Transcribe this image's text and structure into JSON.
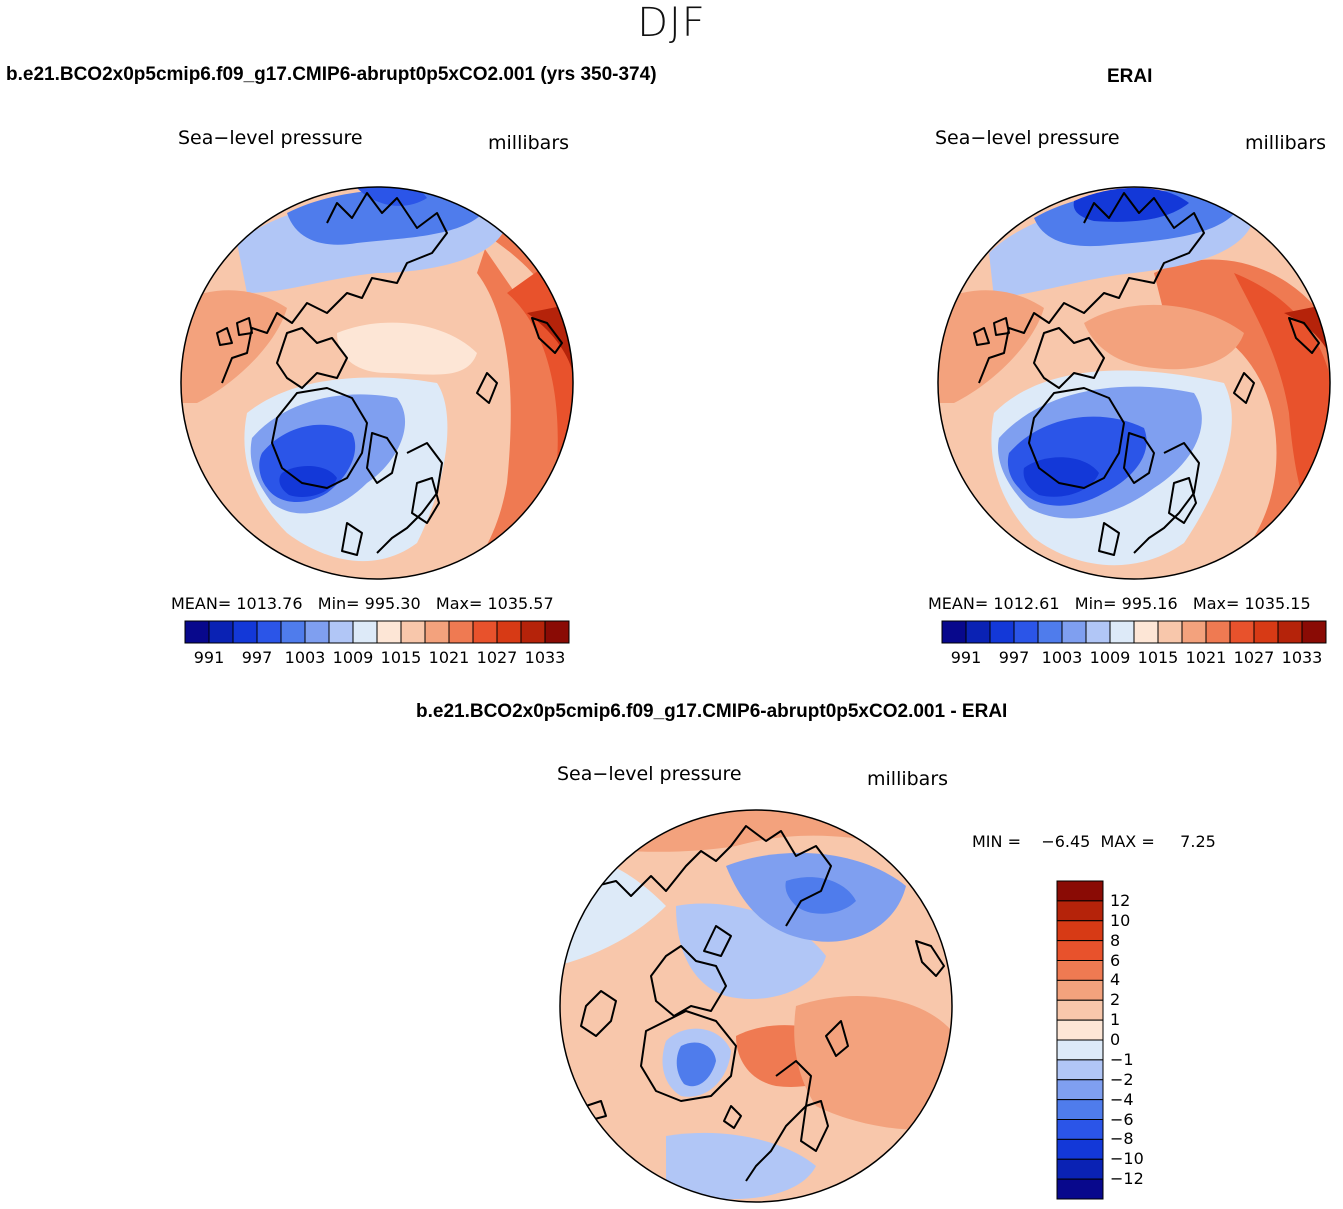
{
  "title": "DJF",
  "panels": [
    {
      "case_title": "b.e21.BCO2x0p5cmip6.f09_g17.CMIP6-abrupt0p5xCO2.001 (yrs 350-374)",
      "variable": "Sea−level pressure",
      "units": "millibars",
      "mean_label": "MEAN=",
      "mean": "1013.76",
      "min_label": "Min=",
      "min": "995.30",
      "max_label": "Max=",
      "max": "1035.57"
    },
    {
      "case_title": "ERAI",
      "variable": "Sea−level pressure",
      "units": "millibars",
      "mean_label": "MEAN=",
      "mean": "1012.61",
      "min_label": "Min=",
      "min": "995.16",
      "max_label": "Max=",
      "max": "1035.15"
    },
    {
      "case_title": "b.e21.BCO2x0p5cmip6.f09_g17.CMIP6-abrupt0p5xCO2.001 - ERAI",
      "variable": "Sea−level pressure",
      "units": "millibars",
      "min_label": "MIN =",
      "min": "−6.45",
      "max_label": "MAX =",
      "max": "7.25"
    }
  ],
  "abs_colorbar": {
    "colors": [
      "#08088c",
      "#0a22b4",
      "#1338d8",
      "#2b55e8",
      "#4f7cec",
      "#7f9ff0",
      "#b1c6f6",
      "#ddeaf8",
      "#fde6d6",
      "#f8c7ab",
      "#f3a27d",
      "#ef7a52",
      "#e8522c",
      "#d73a15",
      "#b5230a",
      "#8a0b05"
    ],
    "tick_labels": [
      "991",
      "997",
      "1003",
      "1009",
      "1015",
      "1021",
      "1027",
      "1033"
    ]
  },
  "diff_colorbar": {
    "colors": [
      "#8a0b05",
      "#b5230a",
      "#d73a15",
      "#e8522c",
      "#ef7a52",
      "#f3a27d",
      "#f8c7ab",
      "#fde6d6",
      "#ddeaf8",
      "#b1c6f6",
      "#7f9ff0",
      "#4f7cec",
      "#2b55e8",
      "#1338d8",
      "#0a22b4",
      "#08088c"
    ],
    "tick_labels": [
      "12",
      "10",
      "8",
      "6",
      "4",
      "2",
      "1",
      "0",
      "−1",
      "−2",
      "−4",
      "−6",
      "−8",
      "−10",
      "−12"
    ]
  },
  "map_fills": {
    "model": {
      "background": "#f8c7ab",
      "blobs": [
        {
          "name": "siberian-high-core",
          "color": "#ef7a52"
        },
        {
          "name": "siberian-high-inner",
          "color": "#e8522c"
        },
        {
          "name": "siberian-high-peak",
          "color": "#b5230a"
        },
        {
          "name": "aleutian-low-outer",
          "color": "#b1c6f6"
        },
        {
          "name": "aleutian-low-inner",
          "color": "#4f7cec"
        },
        {
          "name": "aleutian-low-core",
          "color": "#2b55e8"
        },
        {
          "name": "arctic-ridge",
          "color": "#fde6d6"
        },
        {
          "name": "icelandic-low-outer",
          "color": "#ddeaf8"
        },
        {
          "name": "icelandic-low-mid",
          "color": "#7f9ff0"
        },
        {
          "name": "icelandic-low-inner",
          "color": "#2b55e8"
        },
        {
          "name": "icelandic-low-core",
          "color": "#1338d8"
        },
        {
          "name": "north-america-ridge",
          "color": "#f3a27d"
        }
      ]
    },
    "erai": {
      "background": "#f8c7ab",
      "blobs": [
        {
          "name": "siberian-high-core",
          "color": "#ef7a52"
        },
        {
          "name": "siberian-high-inner",
          "color": "#e8522c"
        },
        {
          "name": "siberian-high-peak",
          "color": "#b5230a"
        },
        {
          "name": "aleutian-low-outer",
          "color": "#b1c6f6"
        },
        {
          "name": "aleutian-low-inner",
          "color": "#4f7cec"
        },
        {
          "name": "aleutian-low-core",
          "color": "#1338d8"
        },
        {
          "name": "arctic-ridge",
          "color": "#f3a27d"
        },
        {
          "name": "icelandic-low-outer",
          "color": "#ddeaf8"
        },
        {
          "name": "icelandic-low-mid",
          "color": "#7f9ff0"
        },
        {
          "name": "icelandic-low-inner",
          "color": "#2b55e8"
        },
        {
          "name": "icelandic-low-core",
          "color": "#1338d8"
        },
        {
          "name": "north-america-ridge",
          "color": "#f3a27d"
        }
      ]
    },
    "diff": {
      "background": "#f8c7ab",
      "blobs": [
        {
          "name": "pacific-negative",
          "color": "#ddeaf8"
        },
        {
          "name": "arctic-negative",
          "color": "#b1c6f6"
        },
        {
          "name": "siberia-negative",
          "color": "#7f9ff0"
        },
        {
          "name": "siberia-negative-core",
          "color": "#4f7cec"
        },
        {
          "name": "greenland-negative",
          "color": "#b1c6f6"
        },
        {
          "name": "greenland-negative-core",
          "color": "#4f7cec"
        },
        {
          "name": "atlantic-positive",
          "color": "#ef7a52"
        },
        {
          "name": "europe-positive",
          "color": "#f3a27d"
        },
        {
          "name": "pacific-positive",
          "color": "#f3a27d"
        },
        {
          "name": "europe-negative",
          "color": "#b1c6f6"
        },
        {
          "name": "north-america-positive",
          "color": "#f8c7ab"
        }
      ]
    }
  }
}
